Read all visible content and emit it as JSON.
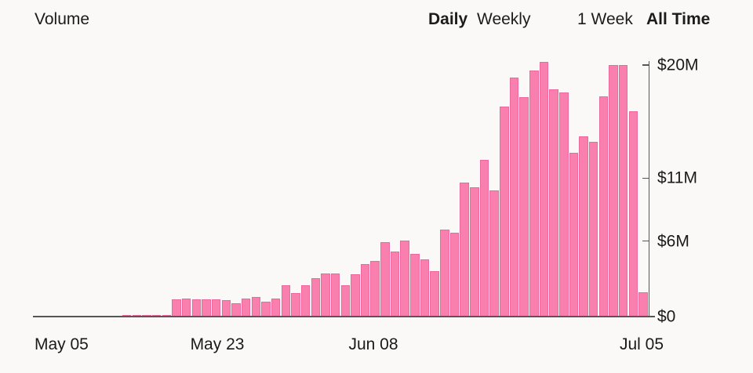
{
  "header": {
    "title": "Volume",
    "granularity_toggle": {
      "options": [
        {
          "label": "Daily",
          "selected": true
        },
        {
          "label": "Weekly",
          "selected": false
        }
      ]
    },
    "range_toggle": {
      "options": [
        {
          "label": "1 Week",
          "selected": false
        },
        {
          "label": "All Time",
          "selected": true
        }
      ]
    }
  },
  "chart_data": {
    "type": "bar",
    "title": "Volume",
    "frequency": "daily",
    "x_start": "May 05",
    "x_end": "Jul 05",
    "unit": "$M",
    "values": [
      0.02,
      0.02,
      0.03,
      0.03,
      0.03,
      0.04,
      0.04,
      0.05,
      0.08,
      0.1,
      0.1,
      0.12,
      0.13,
      0.15,
      1.4,
      1.45,
      1.4,
      1.35,
      1.4,
      1.33,
      1.06,
      1.43,
      1.54,
      1.16,
      1.43,
      2.47,
      1.85,
      2.51,
      3.05,
      3.45,
      3.41,
      2.47,
      3.34,
      4.2,
      4.4,
      5.9,
      5.2,
      6.04,
      5.0,
      4.55,
      3.6,
      6.93,
      6.67,
      10.67,
      10.26,
      12.44,
      10.03,
      16.7,
      19.0,
      17.43,
      19.54,
      20.23,
      18.05,
      17.8,
      13.0,
      14.31,
      13.9,
      17.52,
      20.02,
      20.02,
      16.34,
      1.95
    ],
    "x_tick_labels": [
      "May 05",
      "May 23",
      "Jun 08",
      "Jul 05"
    ],
    "y_ticks": [
      {
        "label": "$20M",
        "value": 20
      },
      {
        "label": "$11M",
        "value": 11
      },
      {
        "label": "$6M",
        "value": 6
      },
      {
        "label": "$0",
        "value": 0
      }
    ],
    "ylim": [
      0,
      20.6
    ],
    "y_axis_side": "right",
    "grid": false,
    "bar_color": "#f980ae",
    "bar_border_color": "#ec699d",
    "axis_color": "#565656"
  }
}
